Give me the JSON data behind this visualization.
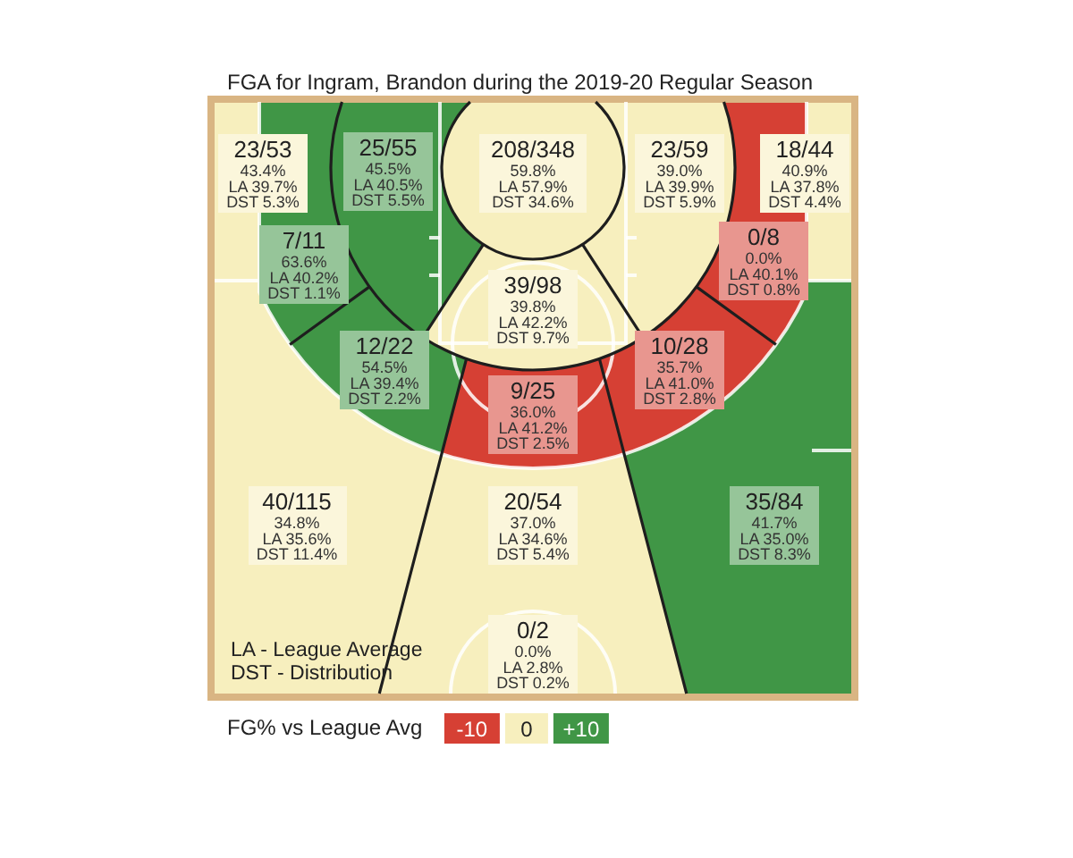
{
  "chart_data": {
    "type": "other",
    "title": "FGA for Ingram, Brandon during the 2019-20 Regular Season",
    "categories": [
      "23/53",
      "25/55",
      "208/348",
      "23/59",
      "18/44",
      "7/11",
      "0/8",
      "39/98",
      "12/22",
      "10/28",
      "9/25",
      "40/115",
      "20/54",
      "35/84",
      "0/2"
    ],
    "series": [
      {
        "values": [
          43.4,
          45.5,
          59.8,
          39.0,
          40.9,
          63.6,
          0.0,
          39.8,
          54.5,
          35.7,
          36.0,
          34.8,
          37.0,
          41.7,
          0.0
        ],
        "colors": [
          "#f7efbe",
          "#409646",
          "#f7efbe",
          "#f7efbe",
          "#f7efbe",
          "#409646",
          "#d64034",
          "#f7efbe",
          "#409646",
          "#d64034",
          "#d64034",
          "#f7efbe",
          "#f7efbe",
          "#409646",
          "#f7efbe"
        ],
        "value_labels": [
          "43.4%",
          "45.5%",
          "59.8%",
          "39.0%",
          "40.9%",
          "63.6%",
          "0.0%",
          "39.8%",
          "54.5%",
          "35.7%",
          "36.0%",
          "34.8%",
          "37.0%",
          "41.7%",
          "0.0%"
        ]
      },
      {
        "values": [
          39.7,
          40.5,
          57.9,
          39.9,
          37.8,
          40.2,
          40.1,
          42.2,
          39.4,
          41.0,
          41.2,
          35.6,
          34.6,
          35.0,
          2.8
        ],
        "colors": [
          "#f7efbe",
          "#409646",
          "#f7efbe",
          "#f7efbe",
          "#f7efbe",
          "#409646",
          "#d64034",
          "#f7efbe",
          "#409646",
          "#d64034",
          "#d64034",
          "#f7efbe",
          "#f7efbe",
          "#409646",
          "#f7efbe"
        ],
        "value_labels": [
          "LA 39.7%",
          "LA 40.5%",
          "LA 57.9%",
          "LA 39.9%",
          "LA 37.8%",
          "LA 40.2%",
          "LA 40.1%",
          "LA 42.2%",
          "LA 39.4%",
          "LA 41.0%",
          "LA 41.2%",
          "LA 35.6%",
          "LA 34.6%",
          "LA 35.0%",
          "LA 2.8%"
        ]
      },
      {
        "values": [
          5.3,
          5.5,
          34.6,
          5.9,
          4.4,
          1.1,
          0.8,
          9.7,
          2.2,
          2.8,
          2.5,
          11.4,
          5.4,
          8.3,
          0.2
        ],
        "colors": [
          "#f7efbe",
          "#409646",
          "#f7efbe",
          "#f7efbe",
          "#f7efbe",
          "#409646",
          "#d64034",
          "#f7efbe",
          "#409646",
          "#d64034",
          "#d64034",
          "#f7efbe",
          "#f7efbe",
          "#409646",
          "#f7efbe"
        ],
        "value_labels": [
          "DST 5.3%",
          "DST 5.5%",
          "DST 34.6%",
          "DST 5.9%",
          "DST 4.4%",
          "DST 1.1%",
          "DST 0.8%",
          "DST 9.7%",
          "DST 2.2%",
          "DST 2.8%",
          "DST 2.5%",
          "DST 11.4%",
          "DST 5.4%",
          "DST 8.3%",
          "DST 0.2%"
        ]
      }
    ],
    "clabel": "FG% vs League Avg",
    "annotations": [
      "LA - League Average",
      "DST - Distribution",
      "-10",
      "0",
      "+10"
    ]
  }
}
